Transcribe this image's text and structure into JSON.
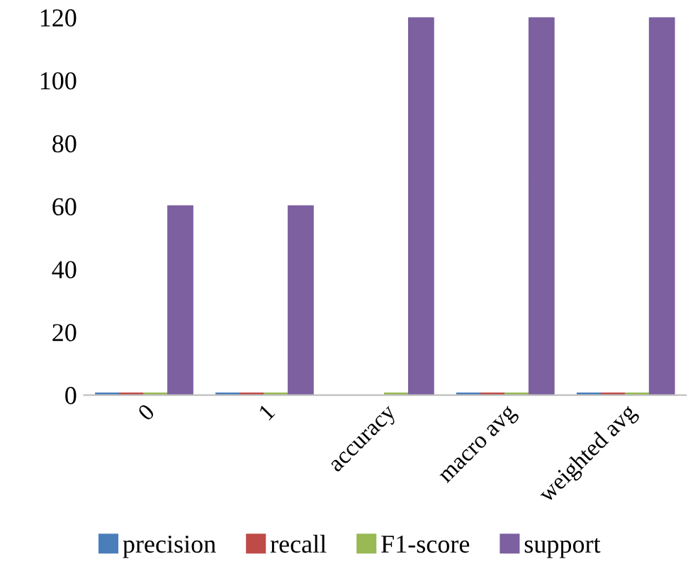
{
  "chart_data": {
    "type": "bar",
    "categories": [
      "0",
      "1",
      "accuracy",
      "macro avg",
      "weighted avg"
    ],
    "series": [
      {
        "name": "precision",
        "color": "#4a7ebb",
        "values": [
          0.5,
          0.5,
          null,
          0.5,
          0.5
        ]
      },
      {
        "name": "recall",
        "color": "#be4b48",
        "values": [
          0.5,
          0.5,
          null,
          0.5,
          0.5
        ]
      },
      {
        "name": "F1-score",
        "color": "#98b954",
        "values": [
          0.5,
          0.5,
          0.5,
          0.5,
          0.5
        ]
      },
      {
        "name": "support",
        "color": "#7d60a0",
        "values": [
          60,
          60,
          120,
          120,
          120
        ]
      }
    ],
    "ylim": [
      0,
      120
    ],
    "yticks": [
      0,
      20,
      40,
      60,
      80,
      100,
      120
    ],
    "grid": false,
    "legend": "bottom"
  }
}
